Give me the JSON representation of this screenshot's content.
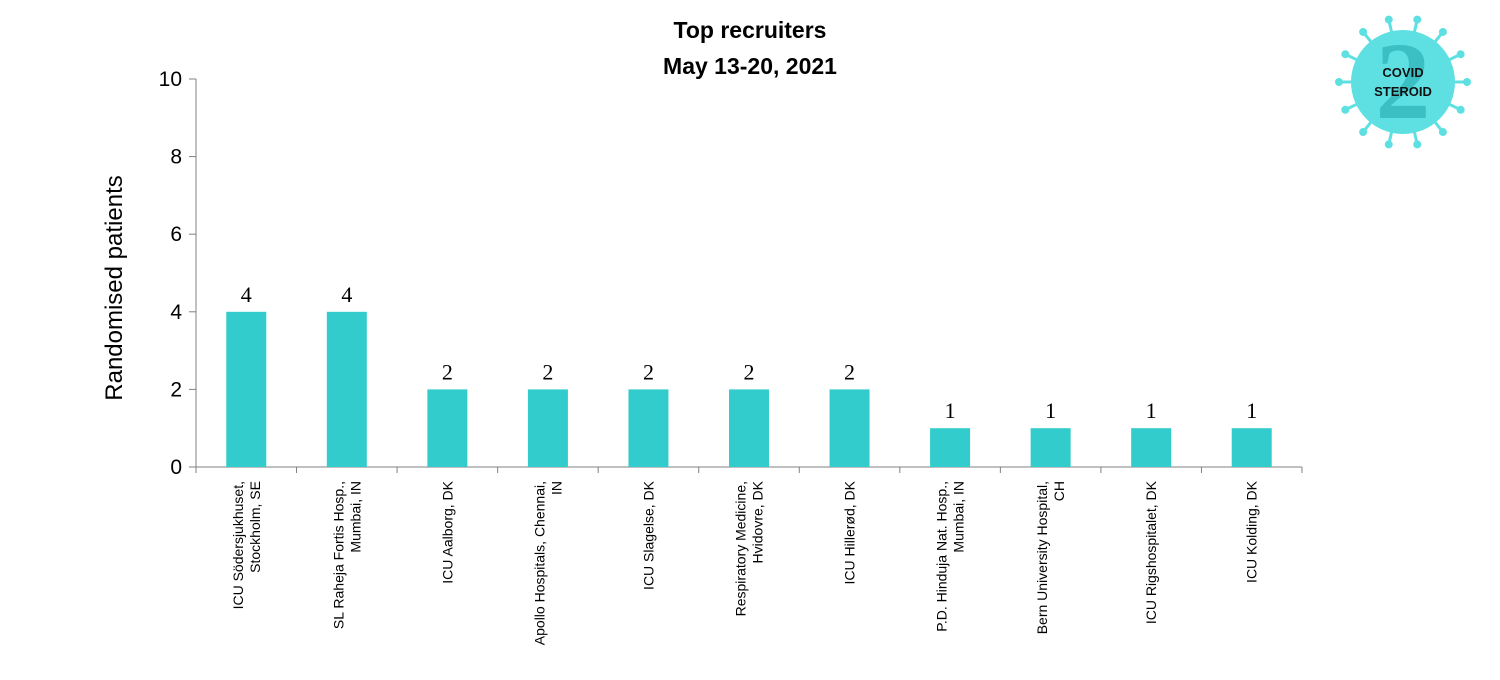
{
  "chart_data": {
    "type": "bar",
    "title": "Top recruiters",
    "subtitle": "May 13-20, 2021",
    "ylabel": "Randomised patients",
    "xlabel": "",
    "ylim": [
      0,
      10
    ],
    "yticks": [
      0,
      2,
      4,
      6,
      8,
      10
    ],
    "grid": false,
    "bar_color": "#33CCCC",
    "categories": [
      [
        "ICU Södersjukhuset,",
        "Stockholm, SE"
      ],
      [
        "SL Raheja Fortis Hosp.,",
        "Mumbai, IN"
      ],
      [
        "ICU Aalborg, DK"
      ],
      [
        "Apollo Hospitals, Chennai,",
        "IN"
      ],
      [
        "ICU Slagelse, DK"
      ],
      [
        "Respiratory Medicine,",
        "Hvidovre, DK"
      ],
      [
        "ICU Hillerød, DK"
      ],
      [
        "P.D. Hinduja Nat. Hosp.,",
        "Mumbai, IN"
      ],
      [
        "Bern University Hospital,",
        "CH"
      ],
      [
        "ICU Rigshospitalet, DK"
      ],
      [
        "ICU Kolding, DK"
      ]
    ],
    "values": [
      4,
      4,
      2,
      2,
      2,
      2,
      2,
      1,
      1,
      1,
      1
    ]
  },
  "logo": {
    "line1": "COVID",
    "line2": "STEROID",
    "numeral": "2",
    "color": "#5EE0E3"
  }
}
